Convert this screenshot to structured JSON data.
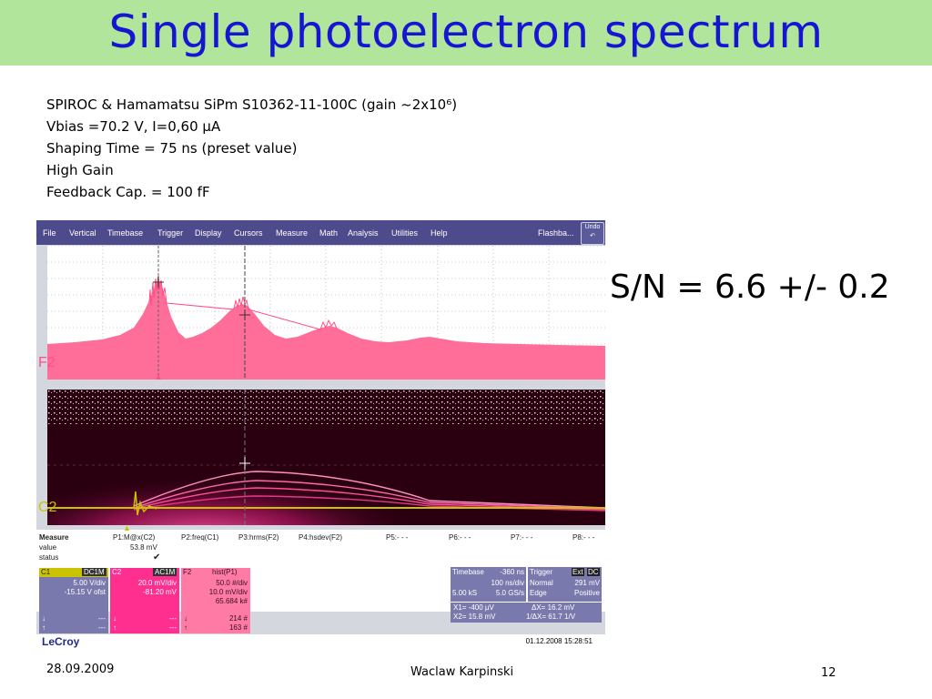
{
  "slide": {
    "title": "Single photoelectron spectrum",
    "info_lines": [
      "SPIROC  & Hamamatsu SiPm S10362-11-100C (gain ~2x10⁶)",
      "Vbias =70.2 V, I=0,60 µA",
      "Shaping Time = 75 ns   (preset value)",
      "High Gain",
      "Feedback Cap. = 100 fF"
    ],
    "sn_text": "S/N = 6.6 +/- 0.2",
    "footer_date": "28.09.2009",
    "footer_author": "Waclaw Karpinski",
    "footer_page": "12"
  },
  "scope": {
    "menu": [
      "File",
      "Vertical",
      "Timebase",
      "Trigger",
      "Display",
      "Cursors",
      "Measure",
      "Math",
      "Analysis",
      "Utilities",
      "Help"
    ],
    "flashback": "Flashba...",
    "undo": "Undo",
    "trace_label_f2": "F2",
    "trace_label_c2": "C2",
    "measure": {
      "title": "Measure",
      "row_labels": [
        "value",
        "status"
      ],
      "params": [
        "P1:M@x(C2)",
        "P2:freq(C1)",
        "P3:hrms(F2)",
        "P4:hsdev(F2)",
        "P5:- - -",
        "P6:- - -",
        "P7:- - -",
        "P8:- - -"
      ],
      "p1_value": "53.8 mV",
      "p1_status": "✔"
    },
    "channels": {
      "c1": {
        "name": "C1",
        "tag": "DC1M",
        "lines": [
          "5.00 V/div",
          "-15.15 V ofst"
        ],
        "foot": [
          "---",
          "---"
        ]
      },
      "c2": {
        "name": "C2",
        "tag": "AC1M",
        "lines": [
          "20.0 mV/div",
          "-81.20 mV"
        ],
        "foot": [
          "---",
          "---"
        ]
      },
      "f2": {
        "name": "F2",
        "tag": "hist(P1)",
        "lines": [
          "50.0 #/div",
          "10.0 mV/div",
          "65.684 k#"
        ],
        "foot": [
          "214 #",
          "163 #"
        ]
      }
    },
    "timebase": {
      "label": "Timebase",
      "offset": "-360 ns",
      "div": "100 ns/div",
      "samples": "5.00 kS",
      "rate": "5.0 GS/s"
    },
    "trigger": {
      "label": "Trigger",
      "tag1": "Ext",
      "tag2": "DC",
      "mode": "Normal",
      "level": "291 mV",
      "type": "Edge",
      "slope": "Positive"
    },
    "cursors": {
      "x1": "X1=   -400 µV",
      "dx": "ΔX=   16.2 mV",
      "x2": "X2=   15.8 mV",
      "inv": "1/ΔX=   61.7 1/V"
    },
    "timestamp": "01.12.2008 15:28:51",
    "brand": "LeCroy"
  },
  "colors": {
    "title_bg": "#b1e59c",
    "title_text": "#1515d2",
    "menubar": "#4d4b8b",
    "histogram": "#ff6d99",
    "persistence_bg": "#2a0010",
    "c1_yellow": "#c9c300",
    "c2_pink": "#ff2f90",
    "f2_pink": "#ff7aa5",
    "panel_purple": "#7a79ae"
  }
}
